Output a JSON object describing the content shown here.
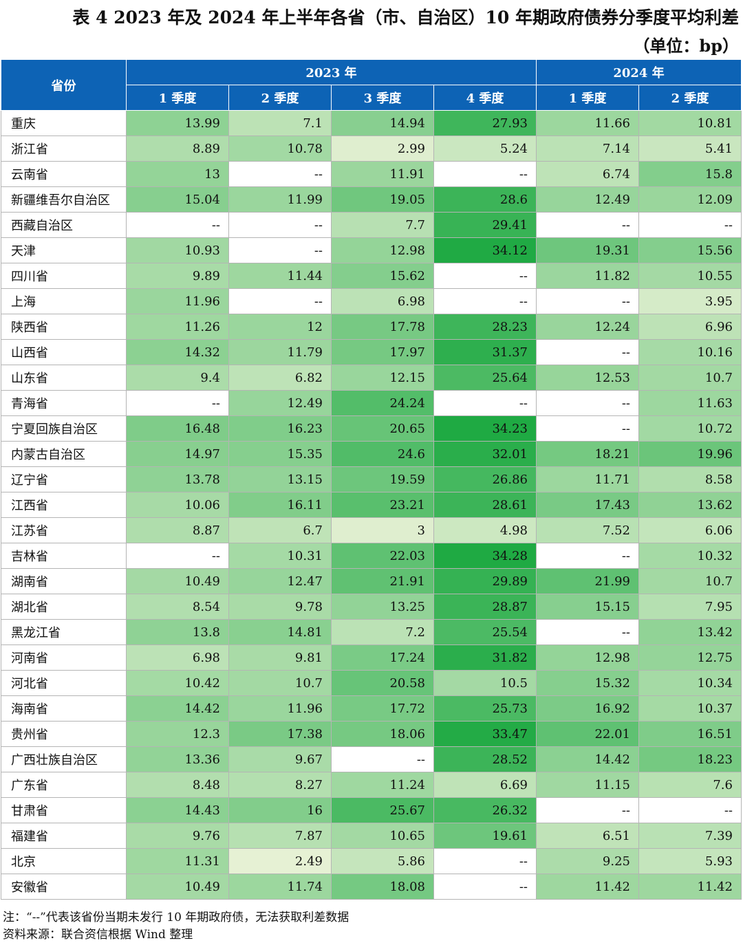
{
  "title": "表 4  2023 年及 2024 年上半年各省（市、自治区）10 年期政府债券分季度平均利差",
  "unit": "（单位：bp）",
  "header": {
    "province": "省份",
    "years": [
      {
        "label": "2023 年",
        "span": 4
      },
      {
        "label": "2024 年",
        "span": 2
      }
    ],
    "quarters": [
      "1 季度",
      "2 季度",
      "3 季度",
      "4 季度",
      "1 季度",
      "2 季度"
    ]
  },
  "missing_marker": "--",
  "rows": [
    {
      "province": "重庆",
      "values": [
        "13.99",
        "7.1",
        "14.94",
        "27.93",
        "11.66",
        "10.81"
      ]
    },
    {
      "province": "浙江省",
      "values": [
        "8.89",
        "10.78",
        "2.99",
        "5.24",
        "7.14",
        "5.41"
      ]
    },
    {
      "province": "云南省",
      "values": [
        "13",
        "--",
        "11.91",
        "--",
        "6.74",
        "15.8"
      ]
    },
    {
      "province": "新疆维吾尔自治区",
      "values": [
        "15.04",
        "11.99",
        "19.05",
        "28.6",
        "12.49",
        "12.09"
      ]
    },
    {
      "province": "西藏自治区",
      "values": [
        "--",
        "--",
        "7.7",
        "29.41",
        "--",
        "--"
      ]
    },
    {
      "province": "天津",
      "values": [
        "10.93",
        "--",
        "12.98",
        "34.12",
        "19.31",
        "15.56"
      ]
    },
    {
      "province": "四川省",
      "values": [
        "9.89",
        "11.44",
        "15.62",
        "--",
        "11.82",
        "10.55"
      ]
    },
    {
      "province": "上海",
      "values": [
        "11.96",
        "--",
        "6.98",
        "--",
        "--",
        "3.95"
      ]
    },
    {
      "province": "陕西省",
      "values": [
        "11.26",
        "12",
        "17.78",
        "28.23",
        "12.24",
        "6.96"
      ]
    },
    {
      "province": "山西省",
      "values": [
        "14.32",
        "11.79",
        "17.97",
        "31.37",
        "--",
        "10.16"
      ]
    },
    {
      "province": "山东省",
      "values": [
        "9.4",
        "6.82",
        "12.15",
        "25.64",
        "12.53",
        "10.7"
      ]
    },
    {
      "province": "青海省",
      "values": [
        "--",
        "12.49",
        "24.24",
        "--",
        "--",
        "11.63"
      ]
    },
    {
      "province": "宁夏回族自治区",
      "values": [
        "16.48",
        "16.23",
        "20.65",
        "34.23",
        "--",
        "10.72"
      ]
    },
    {
      "province": "内蒙古自治区",
      "values": [
        "14.97",
        "15.35",
        "24.6",
        "32.01",
        "18.21",
        "19.96"
      ]
    },
    {
      "province": "辽宁省",
      "values": [
        "13.78",
        "13.15",
        "19.59",
        "26.86",
        "11.71",
        "8.58"
      ]
    },
    {
      "province": "江西省",
      "values": [
        "10.06",
        "16.11",
        "23.21",
        "28.61",
        "17.43",
        "13.62"
      ]
    },
    {
      "province": "江苏省",
      "values": [
        "8.87",
        "6.7",
        "3",
        "4.98",
        "7.52",
        "6.06"
      ]
    },
    {
      "province": "吉林省",
      "values": [
        "--",
        "10.31",
        "22.03",
        "34.28",
        "--",
        "10.32"
      ]
    },
    {
      "province": "湖南省",
      "values": [
        "10.49",
        "12.47",
        "21.91",
        "29.89",
        "21.99",
        "10.7"
      ]
    },
    {
      "province": "湖北省",
      "values": [
        "8.54",
        "9.78",
        "13.25",
        "28.87",
        "15.15",
        "7.95"
      ]
    },
    {
      "province": "黑龙江省",
      "values": [
        "13.8",
        "14.81",
        "7.2",
        "25.54",
        "--",
        "13.42"
      ]
    },
    {
      "province": "河南省",
      "values": [
        "6.98",
        "9.81",
        "17.24",
        "31.82",
        "12.98",
        "12.75"
      ]
    },
    {
      "province": "河北省",
      "values": [
        "10.42",
        "10.7",
        "20.58",
        "10.5",
        "15.32",
        "10.34"
      ]
    },
    {
      "province": "海南省",
      "values": [
        "14.42",
        "11.96",
        "17.72",
        "25.73",
        "16.92",
        "10.37"
      ]
    },
    {
      "province": "贵州省",
      "values": [
        "12.3",
        "17.38",
        "18.06",
        "33.47",
        "22.01",
        "16.51"
      ]
    },
    {
      "province": "广西壮族自治区",
      "values": [
        "13.36",
        "9.67",
        "--",
        "28.52",
        "14.42",
        "18.23"
      ]
    },
    {
      "province": "广东省",
      "values": [
        "8.48",
        "8.27",
        "11.24",
        "6.69",
        "11.15",
        "7.6"
      ]
    },
    {
      "province": "甘肃省",
      "values": [
        "14.43",
        "16",
        "25.67",
        "26.32",
        "--",
        "--"
      ]
    },
    {
      "province": "福建省",
      "values": [
        "9.76",
        "7.87",
        "10.65",
        "19.61",
        "6.51",
        "7.39"
      ]
    },
    {
      "province": "北京",
      "values": [
        "11.31",
        "2.49",
        "5.86",
        "--",
        "9.25",
        "5.93"
      ]
    },
    {
      "province": "安徽省",
      "values": [
        "10.49",
        "11.74",
        "18.08",
        "--",
        "11.42",
        "11.42"
      ]
    }
  ],
  "colors": {
    "header_bg": "#0d63b5",
    "header_text": "#ffffff",
    "heat_low": "#e6f1d4",
    "heat_high": "#1faa43",
    "empty_cell": "#ffffff"
  },
  "notes": [
    "注：“--”代表该省份当期未发行 10 年期政府债，无法获取利差数据",
    "资料来源：联合资信根据 Wind 整理"
  ]
}
